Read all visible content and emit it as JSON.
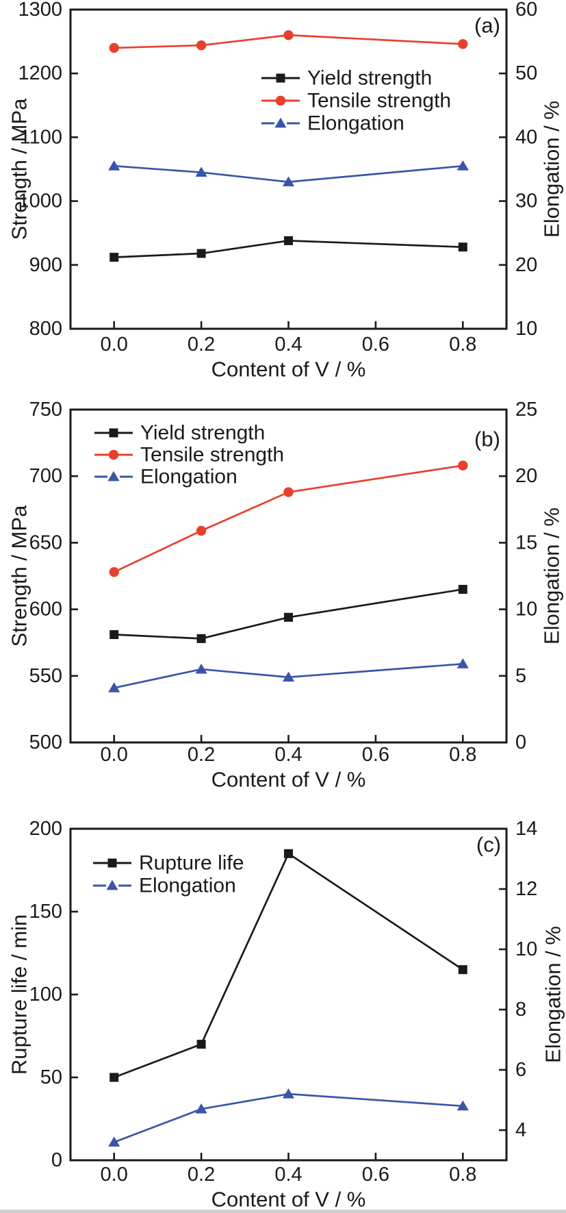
{
  "figure": {
    "description": "Three stacked line charts showing effect of V content on mechanical properties",
    "colors": {
      "black_series": "#1a1a1a",
      "red_series": "#e8402c",
      "blue_series": "#3a55a8",
      "axis": "#1a1a1a",
      "background": "#ffffff"
    }
  },
  "chart_data": [
    {
      "panel_label": "(a)",
      "type": "line",
      "x": [
        0.0,
        0.2,
        0.4,
        0.8
      ],
      "x_tick_labels": [
        "0.0",
        "0.2",
        "0.4",
        "0.6",
        "0.8"
      ],
      "x_tick_values": [
        0.0,
        0.2,
        0.4,
        0.6,
        0.8
      ],
      "xlabel": "Content of V / %",
      "xlim": [
        -0.1,
        0.9
      ],
      "left_axis": {
        "label": "Strength / MPa",
        "min": 800,
        "max": 1300,
        "ticks": [
          800,
          900,
          1000,
          1100,
          1200,
          1300
        ]
      },
      "right_axis": {
        "label": "Elongation / %",
        "min": 10,
        "max": 60,
        "ticks": [
          10,
          20,
          30,
          40,
          50,
          60
        ]
      },
      "series": [
        {
          "name": "Yield strength",
          "axis": "left",
          "marker": "square",
          "color": "#1a1a1a",
          "values": [
            912,
            918,
            938,
            928
          ]
        },
        {
          "name": "Tensile strength",
          "axis": "left",
          "marker": "circle",
          "color": "#e8402c",
          "values": [
            1240,
            1244,
            1260,
            1246
          ]
        },
        {
          "name": "Elongation",
          "axis": "right",
          "marker": "triangle",
          "color": "#3a55a8",
          "values": [
            35.5,
            34.5,
            33.0,
            35.5
          ]
        }
      ],
      "legend_position": "upper-center-right",
      "grid": false
    },
    {
      "panel_label": "(b)",
      "type": "line",
      "x": [
        0.0,
        0.2,
        0.4,
        0.8
      ],
      "x_tick_labels": [
        "0.0",
        "0.2",
        "0.4",
        "0.6",
        "0.8"
      ],
      "x_tick_values": [
        0.0,
        0.2,
        0.4,
        0.6,
        0.8
      ],
      "xlabel": "Content of V / %",
      "xlim": [
        -0.1,
        0.9
      ],
      "left_axis": {
        "label": "Strength / MPa",
        "min": 500,
        "max": 750,
        "ticks": [
          500,
          550,
          600,
          650,
          700,
          750
        ]
      },
      "right_axis": {
        "label": "Elongation / %",
        "min": 0,
        "max": 25,
        "ticks": [
          0,
          5,
          10,
          15,
          20,
          25
        ]
      },
      "series": [
        {
          "name": "Yield strength",
          "axis": "left",
          "marker": "square",
          "color": "#1a1a1a",
          "values": [
            581,
            578,
            594,
            615
          ]
        },
        {
          "name": "Tensile strength",
          "axis": "left",
          "marker": "circle",
          "color": "#e8402c",
          "values": [
            628,
            659,
            688,
            708
          ]
        },
        {
          "name": "Elongation",
          "axis": "right",
          "marker": "triangle",
          "color": "#3a55a8",
          "values": [
            4.1,
            5.5,
            4.9,
            5.9
          ]
        }
      ],
      "legend_position": "upper-left",
      "grid": false
    },
    {
      "panel_label": "(c)",
      "type": "line",
      "x": [
        0.0,
        0.2,
        0.4,
        0.8
      ],
      "x_tick_labels": [
        "0.0",
        "0.2",
        "0.4",
        "0.6",
        "0.8"
      ],
      "x_tick_values": [
        0.0,
        0.2,
        0.4,
        0.6,
        0.8
      ],
      "xlabel": "Content of V / %",
      "xlim": [
        -0.1,
        0.9
      ],
      "left_axis": {
        "label": "Rupture life / min",
        "min": 0,
        "max": 200,
        "ticks": [
          0,
          50,
          100,
          150,
          200
        ]
      },
      "right_axis": {
        "label": "Elongation / %",
        "min": 3.0,
        "max": 14,
        "ticks": [
          4,
          6,
          8,
          10,
          12,
          14
        ]
      },
      "series": [
        {
          "name": "Rupture life",
          "axis": "left",
          "marker": "square",
          "color": "#1a1a1a",
          "values": [
            50,
            70,
            185,
            115
          ]
        },
        {
          "name": "Elongation",
          "axis": "right",
          "marker": "triangle",
          "color": "#3a55a8",
          "values": [
            3.6,
            4.7,
            5.2,
            4.8
          ]
        }
      ],
      "legend_position": "upper-left",
      "grid": false
    }
  ]
}
